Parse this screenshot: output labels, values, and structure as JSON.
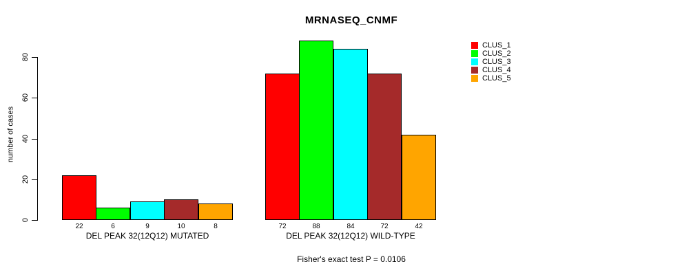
{
  "chart_data": {
    "type": "bar",
    "title": "MRNASEQ_CNMF",
    "ylabel": "number of cases",
    "xlabel": "",
    "categories": [
      "DEL PEAK 32(12Q12) MUTATED",
      "DEL PEAK 32(12Q12) WILD-TYPE"
    ],
    "series": [
      {
        "name": "CLUS_1",
        "color": "#FF0000",
        "values": [
          22,
          72
        ]
      },
      {
        "name": "CLUS_2",
        "color": "#00FF00",
        "values": [
          6,
          88
        ]
      },
      {
        "name": "CLUS_3",
        "color": "#00FFFF",
        "values": [
          9,
          84
        ]
      },
      {
        "name": "CLUS_4",
        "color": "#A52A2A",
        "values": [
          10,
          72
        ]
      },
      {
        "name": "CLUS_5",
        "color": "#FFA500",
        "values": [
          8,
          42
        ]
      }
    ],
    "yticks": [
      0,
      20,
      40,
      60,
      80
    ],
    "ylim": [
      0,
      88
    ],
    "grid": false,
    "legend_position": "right",
    "bar_value_labels": true,
    "annotation": "Fisher's exact test P = 0.0106",
    "bar_border_color": "#000000",
    "axis_color": "#000000",
    "text_color": "#000000",
    "background": "#FFFFFF"
  }
}
